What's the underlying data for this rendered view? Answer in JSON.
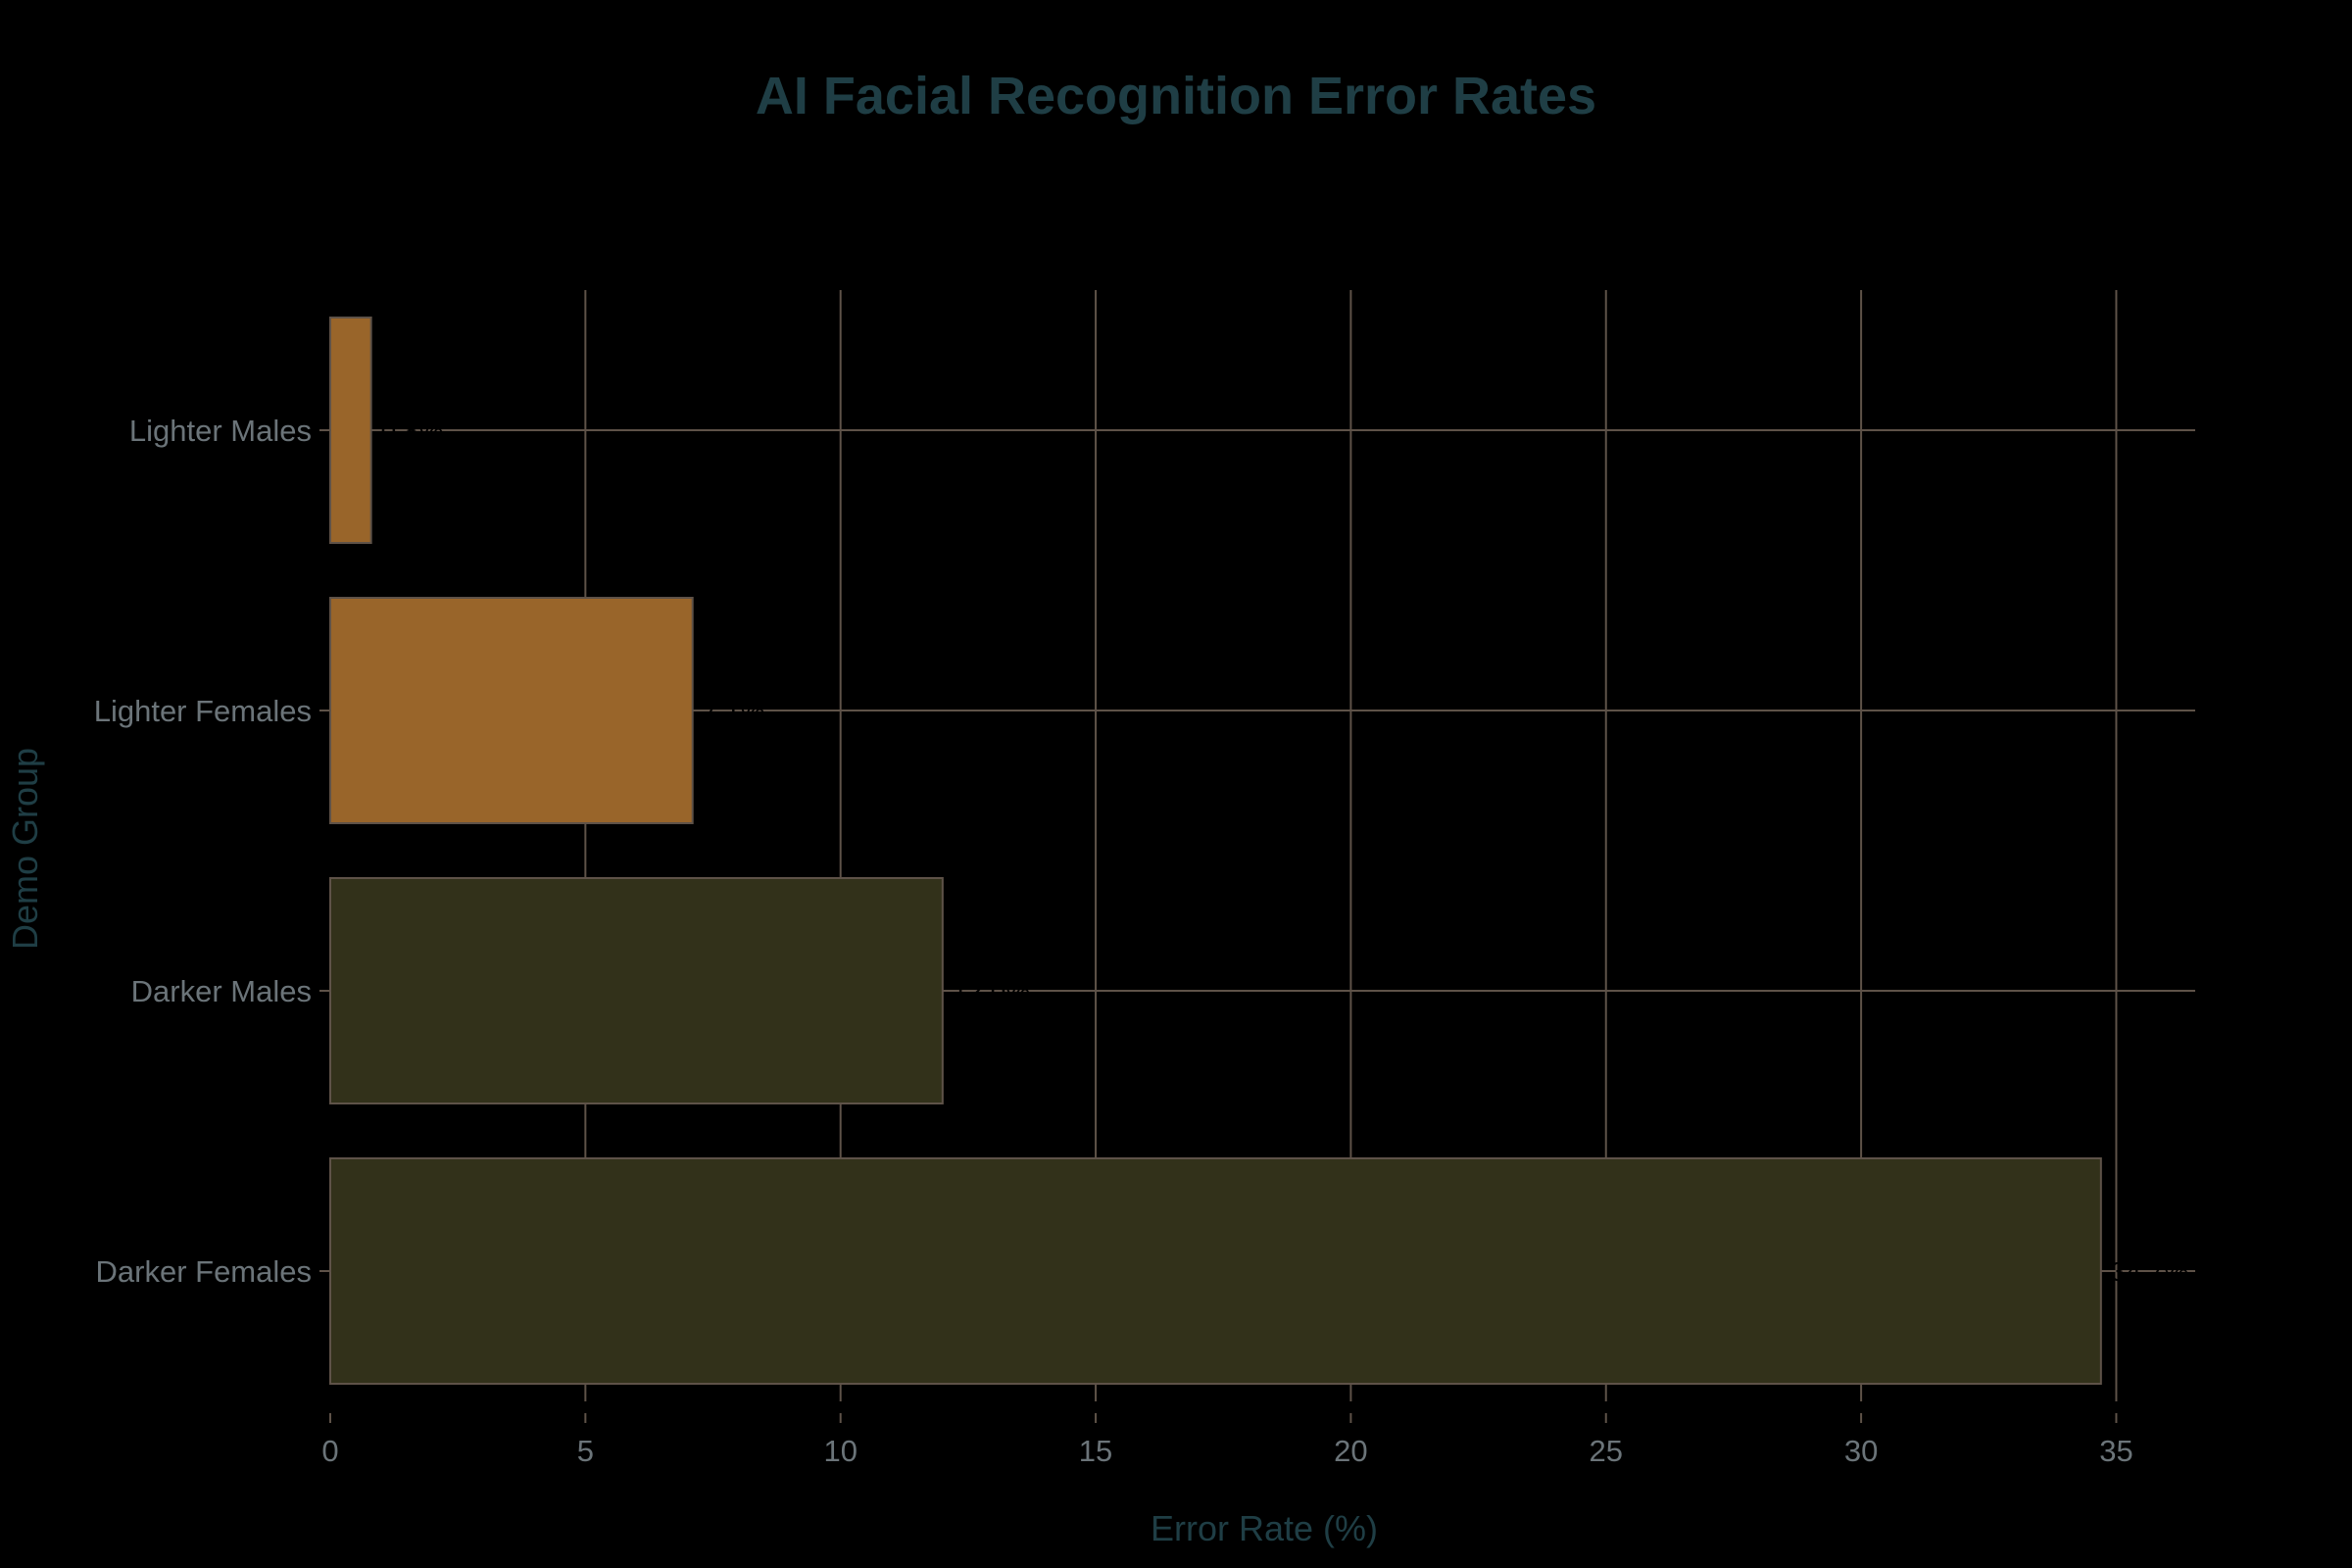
{
  "chart_data": {
    "type": "bar",
    "orientation": "horizontal",
    "title": "AI Facial Recognition Error Rates",
    "xlabel": "Error Rate (%)",
    "ylabel": "Demo Group",
    "categories": [
      "Lighter Males",
      "Lighter Females",
      "Darker Males",
      "Darker Females"
    ],
    "values": [
      0.8,
      7.1,
      12.0,
      34.7
    ],
    "value_labels": [
      "0.8%",
      "7.1%",
      "12.0%",
      "34.7%"
    ],
    "bar_colors": [
      "#99652a",
      "#99652a",
      "#32311a",
      "#32311a"
    ],
    "xlim": [
      0,
      36.5
    ],
    "xticks": [
      0,
      5,
      10,
      15,
      20,
      25,
      30,
      35
    ],
    "grid": true,
    "legend": null
  },
  "colors": {
    "background": "#000000",
    "title": "#1f3e45",
    "axis_title": "#1f3e45",
    "tick_label": "#6b7479",
    "grid": "#5e5248",
    "bar_border": "#5e5248",
    "value_label": "#000000"
  }
}
